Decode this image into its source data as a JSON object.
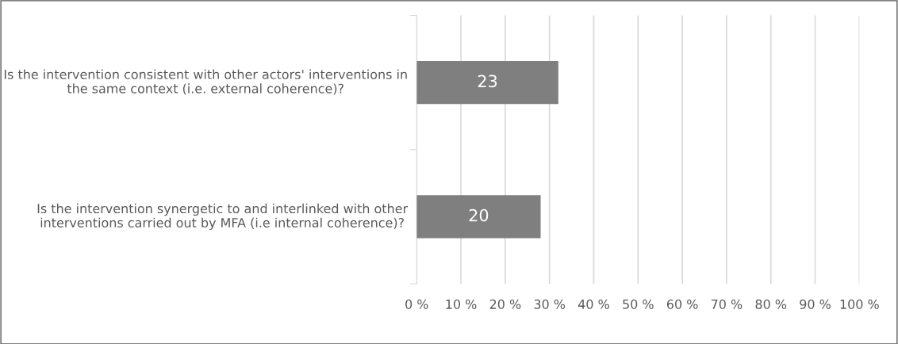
{
  "chart_data": {
    "type": "bar",
    "orientation": "horizontal",
    "categories": [
      "Is the intervention consistent with other actors' interventions in the same context (i.e. external coherence)?",
      "Is the intervention synergetic to and interlinked with other interventions carried out by MFA (i.e internal coherence)?"
    ],
    "values": [
      32,
      28
    ],
    "color": "#7f7f7f",
    "annotations": [
      "23",
      "20"
    ],
    "xlim": [
      0,
      100
    ],
    "xticks": [
      {
        "value": 0,
        "label": "0 %"
      },
      {
        "value": 10,
        "label": "10 %"
      },
      {
        "value": 20,
        "label": "20 %"
      },
      {
        "value": 30,
        "label": "30 %"
      },
      {
        "value": 40,
        "label": "40 %"
      },
      {
        "value": 50,
        "label": "50 %"
      },
      {
        "value": 60,
        "label": "60 %"
      },
      {
        "value": 70,
        "label": "70 %"
      },
      {
        "value": 80,
        "label": "80 %"
      },
      {
        "value": 90,
        "label": "90 %"
      },
      {
        "value": 100,
        "label": "100 %"
      }
    ],
    "grid": "x",
    "legend": false
  }
}
